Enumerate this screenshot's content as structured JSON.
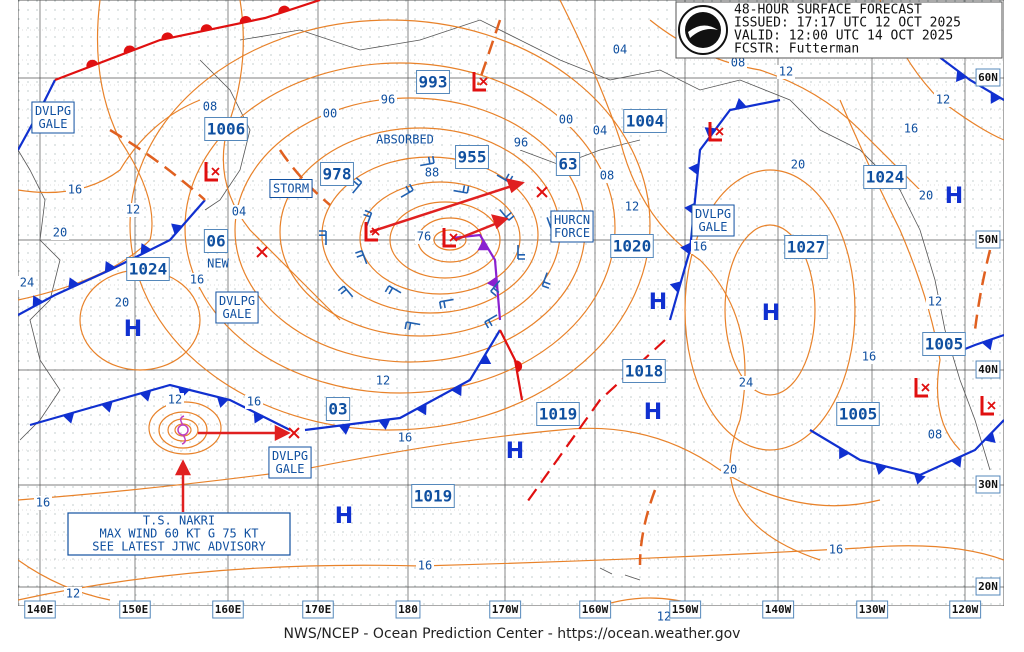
{
  "header": {
    "lines": [
      "48-HOUR SURFACE FORECAST",
      "ISSUED: 17:17 UTC 12 OCT 2025",
      "VALID:  12:00 UTC 14 OCT 2025",
      "FCSTR:  Futterman"
    ]
  },
  "footer": "NWS/NCEP - Ocean Prediction Center - https://ocean.weather.gov",
  "longitude_labels": [
    "140E",
    "150E",
    "160E",
    "170E",
    "180",
    "170W",
    "160W",
    "150W",
    "140W",
    "130W",
    "120W"
  ],
  "latitude_labels": [
    "60N",
    "50N",
    "40N",
    "30N",
    "20N"
  ],
  "pressure_centers": [
    "993",
    "1006",
    "978",
    "955",
    "1004",
    "63",
    "1024",
    "1020",
    "1027",
    "1024",
    "1005",
    "1018",
    "1019",
    "1005",
    "1019",
    "03",
    "06"
  ],
  "high_labels": [
    "H",
    "H",
    "H",
    "H",
    "H",
    "H",
    "H"
  ],
  "isobar_labels": [
    "08",
    "04",
    "08",
    "12",
    "12",
    "16",
    "20",
    "20",
    "96",
    "00",
    "00",
    "04",
    "96",
    "88",
    "76",
    "08",
    "12",
    "16",
    "16",
    "12",
    "20",
    "24",
    "20",
    "04",
    "16",
    "12",
    "12",
    "16",
    "16",
    "16",
    "12",
    "16",
    "24",
    "08",
    "20",
    "16",
    "16",
    "12",
    "12"
  ],
  "annotations": [
    [
      "DVLPG",
      "GALE"
    ],
    [
      "STORM"
    ],
    [
      "NEW"
    ],
    [
      "DVLPG",
      "GALE"
    ],
    [
      "ABSORBED"
    ],
    [
      "HURCN",
      "FORCE"
    ],
    [
      "DVLPG",
      "GALE"
    ],
    [
      "DVLPG",
      "GALE"
    ]
  ],
  "storm_box": {
    "lines": [
      "T.S. NAKRI",
      "MAX WIND 60 KT G 75 KT",
      "SEE LATEST JTWC ADVISORY"
    ]
  }
}
